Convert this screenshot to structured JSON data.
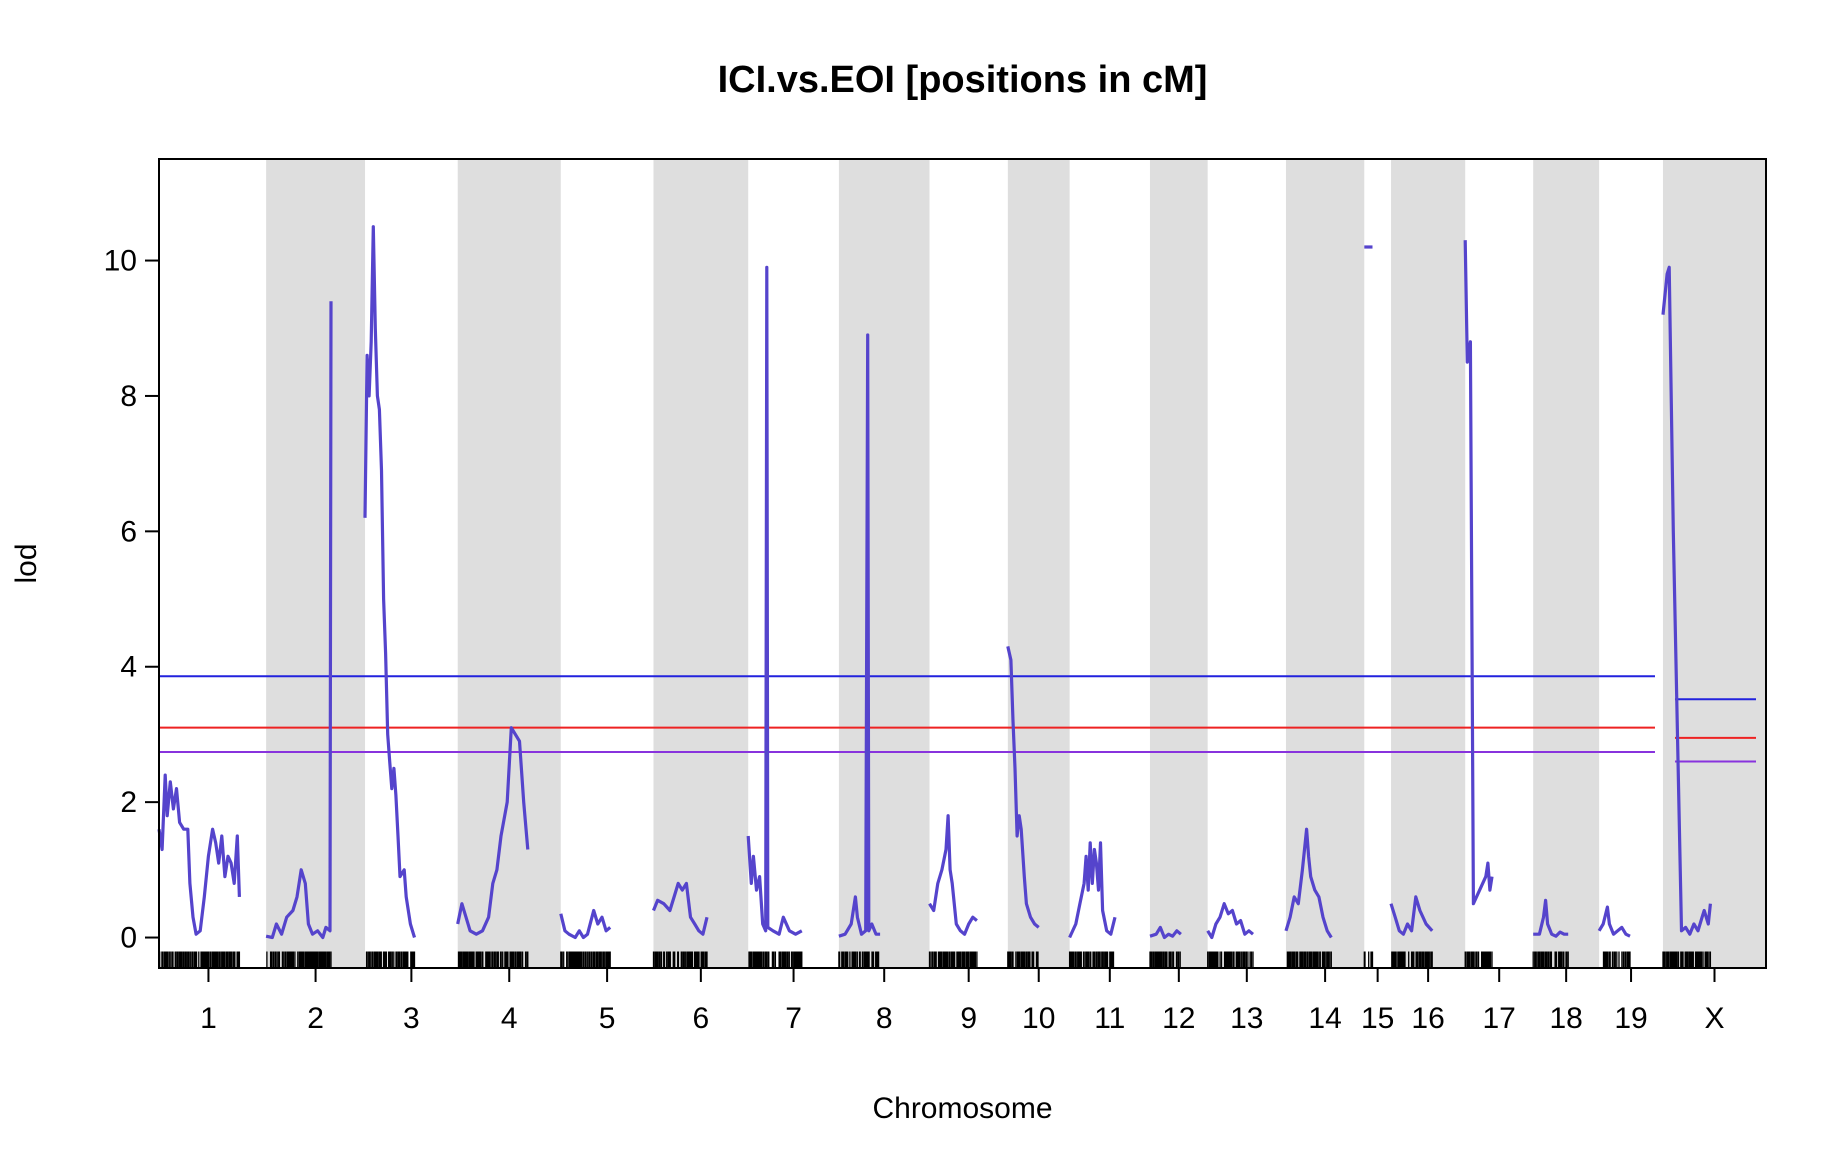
{
  "chart_data": {
    "type": "line",
    "title": "ICI.vs.EOI [positions in cM]",
    "xlabel": "Chromosome",
    "ylabel": "lod",
    "ylim": [
      -0.45,
      11.5
    ],
    "y_ticks": [
      0,
      2,
      4,
      6,
      8,
      10
    ],
    "grid": false,
    "band_color": "#dedede",
    "curve_color": "#5544cc",
    "chromosomes": [
      {
        "name": "1",
        "start": 0,
        "end": 96,
        "shaded": false,
        "points": [
          [
            0,
            1.6
          ],
          [
            3,
            1.3
          ],
          [
            6,
            2.4
          ],
          [
            8,
            1.8
          ],
          [
            11,
            2.3
          ],
          [
            14,
            1.9
          ],
          [
            17,
            2.2
          ],
          [
            20,
            1.7
          ],
          [
            24,
            1.6
          ],
          [
            28,
            1.6
          ],
          [
            30,
            0.8
          ],
          [
            33,
            0.3
          ],
          [
            36,
            0.05
          ],
          [
            40,
            0.1
          ],
          [
            44,
            0.6
          ],
          [
            48,
            1.2
          ],
          [
            52,
            1.6
          ],
          [
            55,
            1.4
          ],
          [
            58,
            1.1
          ],
          [
            61,
            1.5
          ],
          [
            64,
            0.9
          ],
          [
            67,
            1.2
          ],
          [
            70,
            1.1
          ],
          [
            73,
            0.8
          ],
          [
            76,
            1.5
          ],
          [
            78,
            0.6
          ]
        ]
      },
      {
        "name": "2",
        "start": 104,
        "end": 200,
        "shaded": true,
        "points": [
          [
            0,
            0.02
          ],
          [
            6,
            0.0
          ],
          [
            10,
            0.2
          ],
          [
            15,
            0.05
          ],
          [
            20,
            0.3
          ],
          [
            26,
            0.4
          ],
          [
            30,
            0.6
          ],
          [
            34,
            1.0
          ],
          [
            38,
            0.8
          ],
          [
            41,
            0.2
          ],
          [
            45,
            0.05
          ],
          [
            50,
            0.1
          ],
          [
            55,
            0.0
          ],
          [
            58,
            0.15
          ],
          [
            62,
            0.1
          ],
          [
            63,
            9.4
          ]
        ]
      },
      {
        "name": "3",
        "start": 200,
        "end": 290,
        "shaded": false,
        "points": [
          [
            0,
            6.2
          ],
          [
            2,
            8.6
          ],
          [
            4,
            8.0
          ],
          [
            6,
            8.8
          ],
          [
            8,
            10.5
          ],
          [
            10,
            9.0
          ],
          [
            12,
            8.0
          ],
          [
            14,
            7.8
          ],
          [
            16,
            6.9
          ],
          [
            18,
            5.0
          ],
          [
            20,
            4.2
          ],
          [
            22,
            3.0
          ],
          [
            24,
            2.6
          ],
          [
            26,
            2.2
          ],
          [
            28,
            2.5
          ],
          [
            30,
            2.1
          ],
          [
            32,
            1.5
          ],
          [
            34,
            0.9
          ],
          [
            38,
            1.0
          ],
          [
            40,
            0.6
          ],
          [
            44,
            0.2
          ],
          [
            48,
            0.0
          ]
        ]
      },
      {
        "name": "4",
        "start": 290,
        "end": 390,
        "shaded": true,
        "points": [
          [
            0,
            0.2
          ],
          [
            4,
            0.5
          ],
          [
            8,
            0.3
          ],
          [
            12,
            0.1
          ],
          [
            18,
            0.05
          ],
          [
            24,
            0.1
          ],
          [
            30,
            0.3
          ],
          [
            34,
            0.8
          ],
          [
            38,
            1.0
          ],
          [
            42,
            1.5
          ],
          [
            48,
            2.0
          ],
          [
            52,
            3.1
          ],
          [
            56,
            3.0
          ],
          [
            60,
            2.9
          ],
          [
            64,
            2.0
          ],
          [
            68,
            1.3
          ]
        ]
      },
      {
        "name": "5",
        "start": 390,
        "end": 480,
        "shaded": false,
        "points": [
          [
            0,
            0.35
          ],
          [
            4,
            0.1
          ],
          [
            8,
            0.05
          ],
          [
            14,
            0.0
          ],
          [
            18,
            0.1
          ],
          [
            22,
            0.0
          ],
          [
            26,
            0.05
          ],
          [
            32,
            0.4
          ],
          [
            36,
            0.2
          ],
          [
            40,
            0.3
          ],
          [
            44,
            0.1
          ],
          [
            48,
            0.15
          ]
        ]
      },
      {
        "name": "6",
        "start": 480,
        "end": 572,
        "shaded": true,
        "points": [
          [
            0,
            0.4
          ],
          [
            4,
            0.55
          ],
          [
            10,
            0.5
          ],
          [
            16,
            0.4
          ],
          [
            20,
            0.6
          ],
          [
            24,
            0.8
          ],
          [
            28,
            0.7
          ],
          [
            32,
            0.8
          ],
          [
            36,
            0.3
          ],
          [
            40,
            0.2
          ],
          [
            44,
            0.1
          ],
          [
            48,
            0.05
          ],
          [
            52,
            0.3
          ]
        ]
      },
      {
        "name": "7",
        "start": 572,
        "end": 660,
        "shaded": false,
        "points": [
          [
            0,
            1.5
          ],
          [
            3,
            0.8
          ],
          [
            5,
            1.2
          ],
          [
            8,
            0.7
          ],
          [
            11,
            0.9
          ],
          [
            14,
            0.2
          ],
          [
            17,
            0.1
          ],
          [
            18,
            9.9
          ],
          [
            19,
            0.15
          ],
          [
            24,
            0.1
          ],
          [
            30,
            0.05
          ],
          [
            34,
            0.3
          ],
          [
            40,
            0.1
          ],
          [
            46,
            0.05
          ],
          [
            52,
            0.1
          ]
        ]
      },
      {
        "name": "8",
        "start": 660,
        "end": 748,
        "shaded": true,
        "points": [
          [
            0,
            0.02
          ],
          [
            6,
            0.05
          ],
          [
            12,
            0.2
          ],
          [
            16,
            0.6
          ],
          [
            18,
            0.3
          ],
          [
            22,
            0.05
          ],
          [
            26,
            0.1
          ],
          [
            28,
            8.9
          ],
          [
            29,
            0.1
          ],
          [
            32,
            0.2
          ],
          [
            36,
            0.05
          ],
          [
            40,
            0.05
          ]
        ]
      },
      {
        "name": "9",
        "start": 748,
        "end": 824,
        "shaded": false,
        "points": [
          [
            0,
            0.5
          ],
          [
            4,
            0.4
          ],
          [
            8,
            0.8
          ],
          [
            12,
            1.0
          ],
          [
            16,
            1.3
          ],
          [
            18,
            1.8
          ],
          [
            20,
            1.0
          ],
          [
            22,
            0.8
          ],
          [
            26,
            0.2
          ],
          [
            30,
            0.1
          ],
          [
            34,
            0.05
          ],
          [
            38,
            0.2
          ],
          [
            42,
            0.3
          ],
          [
            46,
            0.25
          ]
        ]
      },
      {
        "name": "10",
        "start": 824,
        "end": 884,
        "shaded": true,
        "points": [
          [
            0,
            4.3
          ],
          [
            3,
            4.1
          ],
          [
            5,
            3.2
          ],
          [
            7,
            2.5
          ],
          [
            9,
            1.5
          ],
          [
            11,
            1.8
          ],
          [
            13,
            1.6
          ],
          [
            16,
            0.9
          ],
          [
            18,
            0.5
          ],
          [
            22,
            0.3
          ],
          [
            26,
            0.2
          ],
          [
            30,
            0.15
          ]
        ]
      },
      {
        "name": "11",
        "start": 884,
        "end": 962,
        "shaded": false,
        "points": [
          [
            0,
            0.0
          ],
          [
            6,
            0.2
          ],
          [
            10,
            0.5
          ],
          [
            14,
            0.8
          ],
          [
            16,
            1.2
          ],
          [
            18,
            0.7
          ],
          [
            20,
            1.4
          ],
          [
            22,
            0.8
          ],
          [
            24,
            1.3
          ],
          [
            26,
            1.1
          ],
          [
            28,
            0.7
          ],
          [
            30,
            1.4
          ],
          [
            32,
            0.4
          ],
          [
            36,
            0.1
          ],
          [
            40,
            0.05
          ],
          [
            44,
            0.3
          ]
        ]
      },
      {
        "name": "12",
        "start": 962,
        "end": 1018,
        "shaded": true,
        "points": [
          [
            0,
            0.02
          ],
          [
            6,
            0.05
          ],
          [
            10,
            0.15
          ],
          [
            14,
            0.0
          ],
          [
            18,
            0.05
          ],
          [
            22,
            0.02
          ],
          [
            26,
            0.1
          ],
          [
            30,
            0.05
          ]
        ]
      },
      {
        "name": "13",
        "start": 1018,
        "end": 1094,
        "shaded": false,
        "points": [
          [
            0,
            0.1
          ],
          [
            4,
            0.0
          ],
          [
            8,
            0.2
          ],
          [
            12,
            0.3
          ],
          [
            16,
            0.5
          ],
          [
            20,
            0.35
          ],
          [
            24,
            0.4
          ],
          [
            28,
            0.2
          ],
          [
            32,
            0.25
          ],
          [
            36,
            0.05
          ],
          [
            40,
            0.1
          ],
          [
            44,
            0.05
          ]
        ]
      },
      {
        "name": "14",
        "start": 1094,
        "end": 1170,
        "shaded": true,
        "points": [
          [
            0,
            0.1
          ],
          [
            4,
            0.3
          ],
          [
            8,
            0.6
          ],
          [
            12,
            0.5
          ],
          [
            16,
            1.0
          ],
          [
            20,
            1.6
          ],
          [
            22,
            1.2
          ],
          [
            24,
            0.9
          ],
          [
            28,
            0.7
          ],
          [
            32,
            0.6
          ],
          [
            36,
            0.3
          ],
          [
            40,
            0.1
          ],
          [
            44,
            0.0
          ]
        ]
      },
      {
        "name": "15",
        "start": 1170,
        "end": 1196,
        "shaded": false,
        "points": [
          [
            0,
            10.2
          ],
          [
            8,
            10.2
          ]
        ]
      },
      {
        "name": "16",
        "start": 1196,
        "end": 1268,
        "shaded": true,
        "points": [
          [
            0,
            0.5
          ],
          [
            4,
            0.3
          ],
          [
            8,
            0.1
          ],
          [
            12,
            0.05
          ],
          [
            16,
            0.2
          ],
          [
            20,
            0.1
          ],
          [
            24,
            0.6
          ],
          [
            28,
            0.4
          ],
          [
            34,
            0.2
          ],
          [
            40,
            0.1
          ]
        ]
      },
      {
        "name": "17",
        "start": 1268,
        "end": 1334,
        "shaded": false,
        "points": [
          [
            0,
            10.3
          ],
          [
            2,
            8.5
          ],
          [
            5,
            8.8
          ],
          [
            8,
            0.5
          ],
          [
            20,
            0.9
          ],
          [
            22,
            1.1
          ],
          [
            24,
            0.7
          ],
          [
            26,
            0.9
          ]
        ]
      },
      {
        "name": "18",
        "start": 1334,
        "end": 1398,
        "shaded": true,
        "points": [
          [
            0,
            0.05
          ],
          [
            6,
            0.05
          ],
          [
            10,
            0.3
          ],
          [
            12,
            0.55
          ],
          [
            14,
            0.2
          ],
          [
            18,
            0.05
          ],
          [
            22,
            0.02
          ],
          [
            26,
            0.08
          ],
          [
            30,
            0.05
          ],
          [
            34,
            0.05
          ]
        ]
      },
      {
        "name": "19",
        "start": 1398,
        "end": 1460,
        "shaded": false,
        "points": [
          [
            0,
            0.1
          ],
          [
            4,
            0.2
          ],
          [
            8,
            0.45
          ],
          [
            10,
            0.2
          ],
          [
            14,
            0.05
          ],
          [
            18,
            0.1
          ],
          [
            22,
            0.15
          ],
          [
            26,
            0.05
          ],
          [
            30,
            0.02
          ]
        ]
      },
      {
        "name": "X",
        "start": 1460,
        "end": 1560,
        "shaded": true,
        "points": [
          [
            0,
            9.2
          ],
          [
            4,
            9.8
          ],
          [
            6,
            9.9
          ],
          [
            10,
            6.0
          ],
          [
            18,
            0.1
          ],
          [
            22,
            0.15
          ],
          [
            26,
            0.05
          ],
          [
            30,
            0.2
          ],
          [
            34,
            0.1
          ],
          [
            38,
            0.3
          ],
          [
            40,
            0.4
          ],
          [
            44,
            0.2
          ],
          [
            46,
            0.5
          ]
        ]
      }
    ],
    "threshold_lines": [
      {
        "color": "#2222dd",
        "autosomes": 3.86,
        "x": 3.52
      },
      {
        "color": "#ee2222",
        "autosomes": 3.1,
        "x": 2.95
      },
      {
        "color": "#8833dd",
        "autosomes": 2.74,
        "x": 2.6
      }
    ]
  }
}
